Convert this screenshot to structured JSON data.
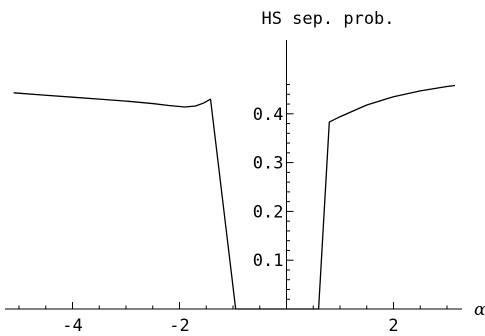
{
  "chart_data": {
    "type": "line",
    "title": "HS sep. prob.",
    "xlabel": "α",
    "ylabel": "",
    "xlim": [
      -5.2,
      3.2
    ],
    "ylim": [
      0,
      0.47
    ],
    "x_ticks_major": [
      -4,
      -2,
      2
    ],
    "x_tick_labels": [
      "-4",
      "-2",
      "2"
    ],
    "y_ticks_major": [
      0.1,
      0.2,
      0.3,
      0.4
    ],
    "y_tick_labels": [
      "0.1",
      "0.2",
      "0.3",
      "0.4"
    ],
    "grid": false,
    "series": [
      {
        "x": [
          -5.1,
          -4.5,
          -4.0,
          -3.5,
          -3.0,
          -2.5,
          -2.2,
          -1.9,
          -1.7,
          -1.55,
          -1.42,
          -0.95,
          -0.3,
          0.3,
          0.6,
          0.8,
          1.0,
          1.5,
          2.0,
          2.5,
          3.0,
          3.15
        ],
        "y": [
          0.443,
          0.438,
          0.434,
          0.43,
          0.426,
          0.421,
          0.417,
          0.414,
          0.416,
          0.422,
          0.43,
          0.0,
          0.0,
          0.0,
          0.0,
          0.383,
          0.394,
          0.418,
          0.435,
          0.447,
          0.456,
          0.458
        ]
      }
    ]
  }
}
